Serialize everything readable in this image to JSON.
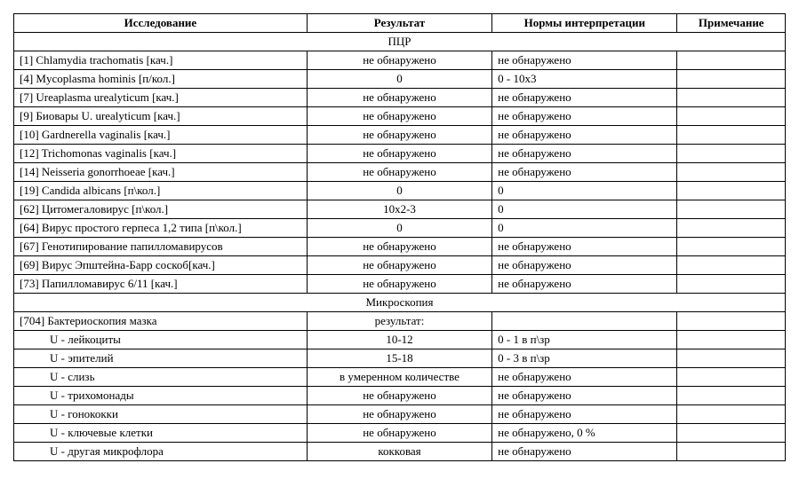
{
  "table": {
    "columns": [
      "Исследование",
      "Результат",
      "Нормы интерпретации",
      "Примечание"
    ],
    "col_widths_pct": [
      38,
      24,
      24,
      14
    ],
    "font_family": "Times New Roman",
    "font_size_pt": 13,
    "border_color": "#000000",
    "background_color": "#ffffff",
    "sections": [
      {
        "title": "ПЦР",
        "rows": [
          {
            "test": "[1] Chlamydia trachomatis [кач.]",
            "result": "не обнаружено",
            "norm": "не обнаружено",
            "note": ""
          },
          {
            "test": "[4] Mycoplasma hominis [п/кол.]",
            "result": "0",
            "norm": "0 - 10x3",
            "note": ""
          },
          {
            "test": "[7] Ureaplasma urealyticum [кач.]",
            "result": "не обнаружено",
            "norm": "не обнаружено",
            "note": ""
          },
          {
            "test": "[9] Биовары U. urealyticum [кач.]",
            "result": "не обнаружено",
            "norm": "не обнаружено",
            "note": ""
          },
          {
            "test": "[10] Gardnerella vaginalis [кач.]",
            "result": "не обнаружено",
            "norm": "не обнаружено",
            "note": ""
          },
          {
            "test": "[12] Trichomonas vaginalis [кач.]",
            "result": "не обнаружено",
            "norm": "не обнаружено",
            "note": ""
          },
          {
            "test": "[14] Neisseria gonorrhoeae [кач.]",
            "result": "не обнаружено",
            "norm": "не обнаружено",
            "note": ""
          },
          {
            "test": "[19] Candida albicans [п\\кол.]",
            "result": "0",
            "norm": "0",
            "note": ""
          },
          {
            "test": "[62] Цитомегаловирус [п\\кол.]",
            "result": "10x2-3",
            "norm": "0",
            "note": ""
          },
          {
            "test": "[64] Вирус простого герпеса 1,2 типа  [п\\кол.]",
            "result": "0",
            "norm": "0",
            "note": ""
          },
          {
            "test": "[67] Генотипирование папилломавирусов",
            "result": "не обнаружено",
            "norm": "не обнаружено",
            "note": ""
          },
          {
            "test": "[69] Вирус Эпштейна-Барр соскоб[кач.]",
            "result": "не обнаружено",
            "norm": "не обнаружено",
            "note": ""
          },
          {
            "test": "[73] Папилломавирус 6/11 [кач.]",
            "result": "не обнаружено",
            "norm": "не обнаружено",
            "note": ""
          }
        ]
      },
      {
        "title": "Микроскопия",
        "rows": [
          {
            "test": "[704] Бактериоскопия мазка",
            "result": "результат:",
            "norm": "",
            "note": "",
            "indent": false
          },
          {
            "test": "U - лейкоциты",
            "result": "10-12",
            "norm": "0 - 1 в п\\зр",
            "note": "",
            "indent": true
          },
          {
            "test": "U - эпителий",
            "result": "15-18",
            "norm": "0 - 3 в п\\зр",
            "note": "",
            "indent": true
          },
          {
            "test": "U - слизь",
            "result": "в умеренном  количестве",
            "norm": "не обнаружено",
            "note": "",
            "indent": true
          },
          {
            "test": "U - трихомонады",
            "result": "не обнаружено",
            "norm": "не обнаружено",
            "note": "",
            "indent": true
          },
          {
            "test": "U - гонококки",
            "result": "не обнаружено",
            "norm": "не обнаружено",
            "note": "",
            "indent": true
          },
          {
            "test": "U - ключевые клетки",
            "result": "не обнаружено",
            "norm": "не обнаружено, 0 %",
            "note": "",
            "indent": true
          },
          {
            "test": "U - другая микрофлора",
            "result": "кокковая",
            "norm": "не обнаружено",
            "note": "",
            "indent": true
          }
        ]
      }
    ]
  }
}
